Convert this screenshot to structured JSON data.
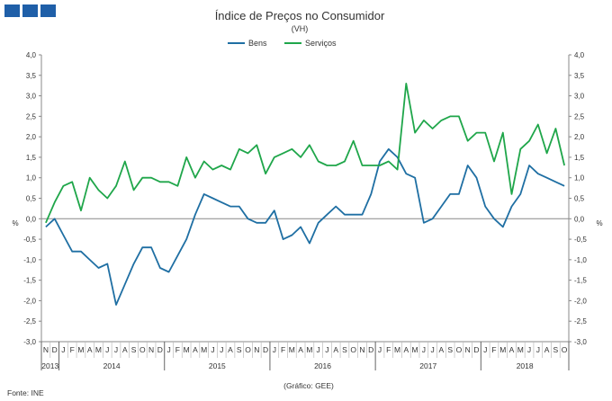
{
  "chart_data": {
    "type": "line",
    "title": "Índice de Preços no Consumidor",
    "subtitle": "(VH)",
    "ylabel_left": "%",
    "ylabel_right": "%",
    "ylim": [
      -3.0,
      4.0
    ],
    "yticks": [
      "-3,0",
      "-2,5",
      "-2,0",
      "-1,5",
      "-1,0",
      "-0,5",
      "0,0",
      "0,5",
      "1,0",
      "1,5",
      "2,0",
      "2,5",
      "3,0",
      "3,5",
      "4,0"
    ],
    "months": [
      "N",
      "D",
      "J",
      "F",
      "M",
      "A",
      "M",
      "J",
      "J",
      "A",
      "S",
      "O",
      "N",
      "D",
      "J",
      "F",
      "M",
      "A",
      "M",
      "J",
      "J",
      "A",
      "S",
      "O",
      "N",
      "D",
      "J",
      "F",
      "M",
      "A",
      "M",
      "J",
      "J",
      "A",
      "S",
      "O",
      "N",
      "D",
      "J",
      "F",
      "M",
      "A",
      "M",
      "J",
      "J",
      "A",
      "S",
      "O",
      "N",
      "D",
      "J",
      "F",
      "M",
      "A",
      "M",
      "J",
      "J",
      "A",
      "S",
      "O"
    ],
    "years": [
      {
        "label": "2013",
        "from": 0,
        "to": 1
      },
      {
        "label": "2014",
        "from": 2,
        "to": 13
      },
      {
        "label": "2015",
        "from": 14,
        "to": 25
      },
      {
        "label": "2016",
        "from": 26,
        "to": 37
      },
      {
        "label": "2017",
        "from": 38,
        "to": 49
      },
      {
        "label": "2018",
        "from": 50,
        "to": 59
      }
    ],
    "series": [
      {
        "name": "Bens",
        "color": "#1f6fa3",
        "values": [
          -0.2,
          0.0,
          -0.4,
          -0.8,
          -0.8,
          -1.0,
          -1.2,
          -1.1,
          -2.1,
          -1.6,
          -1.1,
          -0.7,
          -0.7,
          -1.2,
          -1.3,
          -0.9,
          -0.5,
          0.1,
          0.6,
          0.5,
          0.4,
          0.3,
          0.3,
          0.0,
          -0.1,
          -0.1,
          0.2,
          -0.5,
          -0.4,
          -0.2,
          -0.6,
          -0.1,
          0.1,
          0.3,
          0.1,
          0.1,
          0.1,
          0.6,
          1.4,
          1.7,
          1.5,
          1.1,
          1.0,
          -0.1,
          0.0,
          0.3,
          0.6,
          0.6,
          1.3,
          1.0,
          0.3,
          0.0,
          -0.2,
          0.3,
          0.6,
          1.3,
          1.1,
          1.0,
          0.9,
          0.8
        ]
      },
      {
        "name": "Serviços",
        "color": "#1fa64a",
        "values": [
          -0.1,
          0.4,
          0.8,
          0.9,
          0.2,
          1.0,
          0.7,
          0.5,
          0.8,
          1.4,
          0.7,
          1.0,
          1.0,
          0.9,
          0.9,
          0.8,
          1.5,
          1.0,
          1.4,
          1.2,
          1.3,
          1.2,
          1.7,
          1.6,
          1.8,
          1.1,
          1.5,
          1.6,
          1.7,
          1.5,
          1.8,
          1.4,
          1.3,
          1.3,
          1.4,
          1.9,
          1.3,
          1.3,
          1.3,
          1.4,
          1.2,
          3.3,
          2.1,
          2.4,
          2.2,
          2.4,
          2.5,
          2.5,
          1.9,
          2.1,
          2.1,
          1.4,
          2.1,
          0.6,
          1.7,
          1.9,
          2.3,
          1.6,
          2.2,
          1.3
        ]
      }
    ]
  },
  "footer": {
    "source": "Fonte: INE",
    "credit": "(Gráfico: GEE)"
  }
}
